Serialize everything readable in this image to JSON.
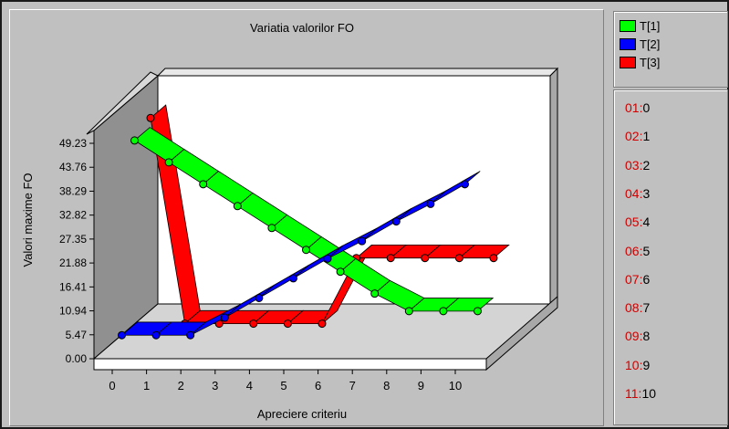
{
  "chart_data": {
    "type": "line",
    "style": "3d-ribbon",
    "title": "Variatia valorilor FO",
    "xlabel": "Apreciere criteriu",
    "ylabel": "Valori maxime FO",
    "categories": [
      "0",
      "1",
      "2",
      "3",
      "4",
      "5",
      "6",
      "7",
      "8",
      "9",
      "10"
    ],
    "yticks": [
      "0.00",
      "5.47",
      "10.94",
      "16.41",
      "21.88",
      "27.35",
      "32.82",
      "38.29",
      "43.76",
      "49.23"
    ],
    "ylim": [
      0,
      49.23
    ],
    "series": [
      {
        "name": "T[1]",
        "color": "#00ff00",
        "values": [
          45.5,
          40.5,
          35.5,
          30.5,
          25.5,
          20.5,
          15.5,
          10.5,
          6.5,
          6.5,
          6.5
        ]
      },
      {
        "name": "T[2]",
        "color": "#0000ff",
        "values": [
          3.5,
          3.5,
          3.5,
          7.5,
          12.0,
          16.5,
          21.0,
          25.0,
          29.5,
          33.5,
          38.0
        ]
      },
      {
        "name": "T[3]",
        "color": "#ff0000",
        "values": [
          47.5,
          0.5,
          0.5,
          0.5,
          0.5,
          0.5,
          15.5,
          15.5,
          15.5,
          15.5,
          15.5
        ]
      }
    ]
  },
  "legend": [
    {
      "label": "T[1]",
      "color": "#00ff00"
    },
    {
      "label": "T[2]",
      "color": "#0000ff"
    },
    {
      "label": "T[3]",
      "color": "#ff0000"
    }
  ],
  "values_list": [
    {
      "index": "01:",
      "value": "0"
    },
    {
      "index": "02:",
      "value": "1"
    },
    {
      "index": "03:",
      "value": "2"
    },
    {
      "index": "04:",
      "value": "3"
    },
    {
      "index": "05:",
      "value": "4"
    },
    {
      "index": "06:",
      "value": "5"
    },
    {
      "index": "07:",
      "value": "6"
    },
    {
      "index": "08:",
      "value": "7"
    },
    {
      "index": "09:",
      "value": "8"
    },
    {
      "index": "10:",
      "value": "9"
    },
    {
      "index": "11:",
      "value": "10"
    }
  ]
}
